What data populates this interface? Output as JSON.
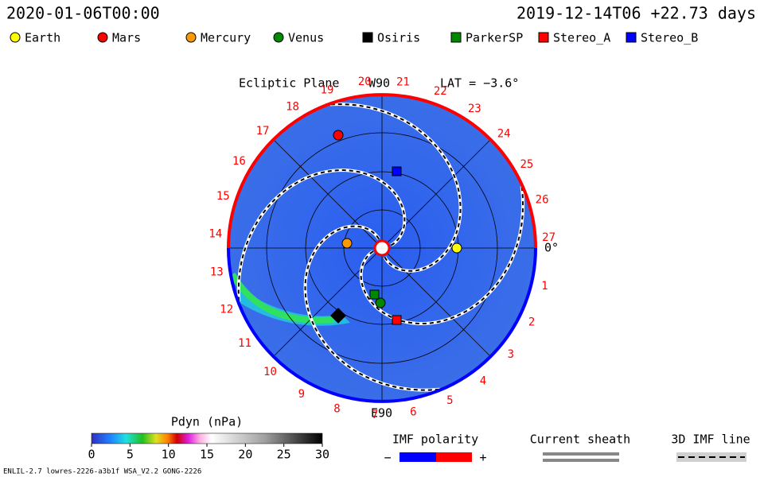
{
  "header": {
    "date": "2020-01-06T00:00",
    "reference": "2019-12-14T06 +22.73 days"
  },
  "legend": [
    {
      "label": "Earth",
      "color": "#ffff00",
      "shape": "circle"
    },
    {
      "label": "Mars",
      "color": "#ff0000",
      "shape": "circle"
    },
    {
      "label": "Mercury",
      "color": "#ff9900",
      "shape": "circle"
    },
    {
      "label": "Venus",
      "color": "#008800",
      "shape": "circle"
    },
    {
      "label": "Osiris",
      "color": "#000000",
      "shape": "square"
    },
    {
      "label": "ParkerSP",
      "color": "#008800",
      "shape": "square"
    },
    {
      "label": "Stereo_A",
      "color": "#ff0000",
      "shape": "square"
    },
    {
      "label": "Stereo_B",
      "color": "#0000ff",
      "shape": "square"
    }
  ],
  "plot": {
    "title": "Ecliptic Plane",
    "top_label": "W90",
    "lat_label": "LAT = −3.6°",
    "bottom_label": "E90",
    "right_label": "0°",
    "day_labels": [
      1,
      2,
      3,
      4,
      5,
      6,
      7,
      8,
      9,
      10,
      11,
      12,
      13,
      14,
      15,
      16,
      17,
      18,
      19,
      20,
      21,
      22,
      23,
      24,
      25,
      26,
      27
    ]
  },
  "colorbar": {
    "title": "Pdyn (nPa)",
    "range": [
      0,
      30
    ],
    "ticks": [
      0,
      5,
      10,
      15,
      20,
      25,
      30
    ]
  },
  "imf_polarity": {
    "title": "IMF polarity",
    "negative": "−",
    "positive": "+"
  },
  "current_sheath": "Current sheath",
  "imf_line": "3D IMF line",
  "footer": "ENLIL-2.7 lowres-2226-a3b1f WSA_V2.2 GONG-2226"
}
